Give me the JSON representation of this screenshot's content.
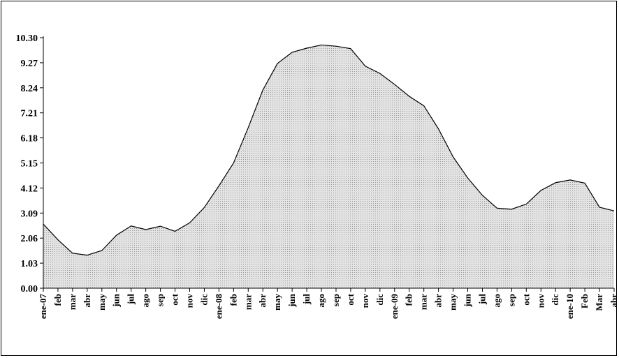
{
  "chart_data": {
    "type": "area",
    "title": "",
    "xlabel": "",
    "ylabel": "",
    "ylim": [
      0,
      10.3
    ],
    "grid": false,
    "legend": "none",
    "fill_color": "#d9d9d9",
    "line_color": "#000000",
    "y_ticks": [
      "0.00",
      "1.03",
      "2.06",
      "3.09",
      "4.12",
      "5.15",
      "6.18",
      "7.21",
      "8.24",
      "9.27",
      "10.30"
    ],
    "categories": [
      "ene-07",
      "feb",
      "mar",
      "abr",
      "may",
      "jun",
      "jul",
      "ago",
      "sep",
      "oct",
      "nov",
      "dic",
      "ene-08",
      "feb",
      "mar",
      "abr",
      "may",
      "jun",
      "jul",
      "ago",
      "sep",
      "oct",
      "nov",
      "dic",
      "ene-09",
      "feb",
      "mar",
      "abr",
      "may",
      "jun",
      "jul",
      "ago",
      "sep",
      "oct",
      "nov",
      "dic",
      "ene-10",
      "Feb",
      "Mar",
      "abr"
    ],
    "values": [
      2.64,
      1.99,
      1.44,
      1.36,
      1.55,
      2.18,
      2.56,
      2.41,
      2.55,
      2.34,
      2.69,
      3.32,
      4.21,
      5.15,
      6.6,
      8.15,
      9.24,
      9.7,
      9.87,
      10.0,
      9.95,
      9.85,
      9.13,
      8.83,
      8.38,
      7.89,
      7.5,
      6.55,
      5.4,
      4.53,
      3.82,
      3.29,
      3.25,
      3.46,
      4.02,
      4.34,
      4.45,
      4.32,
      3.33,
      3.18
    ]
  }
}
